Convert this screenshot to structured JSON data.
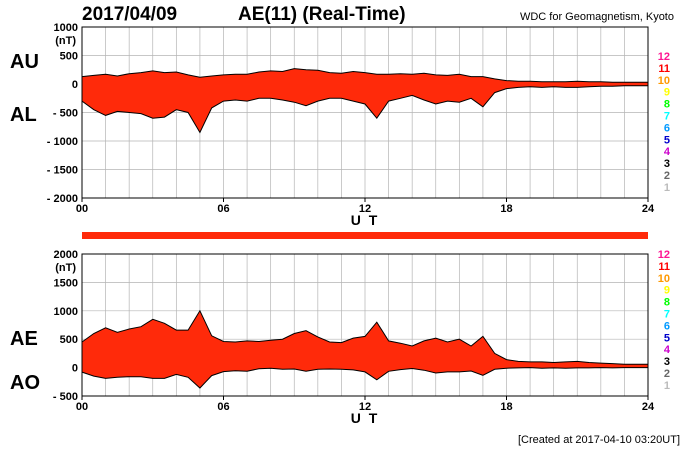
{
  "header": {
    "date": "2017/04/09",
    "title": "AE(11) (Real-Time)",
    "source": "WDC for Geomagnetism, Kyoto"
  },
  "footer": {
    "created": "[Created at 2017-04-10 03:20UT]"
  },
  "colors": {
    "fill": "#ff2a0a",
    "line": "#000000",
    "grid": "#b4b4b4"
  },
  "station_labels": {
    "items": [
      {
        "label": "12",
        "color": "#ff1493"
      },
      {
        "label": "11",
        "color": "#ff0000"
      },
      {
        "label": "10",
        "color": "#ff9900"
      },
      {
        "label": "9",
        "color": "#ffff00"
      },
      {
        "label": "8",
        "color": "#00ff00"
      },
      {
        "label": "7",
        "color": "#00ffff"
      },
      {
        "label": "6",
        "color": "#0099ff"
      },
      {
        "label": "5",
        "color": "#0000cc"
      },
      {
        "label": "4",
        "color": "#cc00cc"
      },
      {
        "label": "3",
        "color": "#000000"
      },
      {
        "label": "2",
        "color": "#666666"
      },
      {
        "label": "1",
        "color": "#bbbbbb"
      }
    ]
  },
  "chart_data": [
    {
      "type": "area",
      "panel": "AU / AL",
      "labels": {
        "upper": "AU",
        "lower": "AL"
      },
      "ylabel": "(nT)",
      "xlabel": "U T",
      "xlim": [
        0,
        24
      ],
      "ylim": [
        -2000,
        1000
      ],
      "xticks": [
        {
          "v": 0,
          "label": "00"
        },
        {
          "v": 6,
          "label": "06"
        },
        {
          "v": 12,
          "label": "12"
        },
        {
          "v": 18,
          "label": "18"
        },
        {
          "v": 24,
          "label": "24"
        }
      ],
      "yticks": [
        {
          "v": 1000,
          "label": "1000"
        },
        {
          "v": 500,
          "label": "500"
        },
        {
          "v": 0,
          "label": "0"
        },
        {
          "v": -500,
          "label": "- 500"
        },
        {
          "v": -1000,
          "label": "- 1000"
        },
        {
          "v": -1500,
          "label": "- 1500"
        },
        {
          "v": -2000,
          "label": "- 2000"
        }
      ],
      "grid": true,
      "series": [
        {
          "name": "AU",
          "x": [
            0,
            0.5,
            1,
            1.5,
            2,
            2.5,
            3,
            3.5,
            4,
            4.5,
            5,
            5.5,
            6,
            6.5,
            7,
            7.5,
            8,
            8.5,
            9,
            9.5,
            10,
            10.5,
            11,
            11.5,
            12,
            12.5,
            13,
            13.5,
            14,
            14.5,
            15,
            15.5,
            16,
            16.5,
            17,
            17.5,
            18,
            18.5,
            19,
            19.5,
            20,
            20.5,
            21,
            21.5,
            22,
            22.5,
            23,
            23.5,
            24
          ],
          "values": [
            130,
            150,
            170,
            140,
            180,
            200,
            230,
            200,
            210,
            160,
            120,
            140,
            160,
            170,
            170,
            210,
            230,
            220,
            270,
            250,
            240,
            200,
            190,
            220,
            200,
            170,
            170,
            180,
            170,
            190,
            160,
            150,
            170,
            130,
            130,
            90,
            60,
            50,
            50,
            40,
            40,
            40,
            50,
            40,
            40,
            30,
            30,
            30,
            30
          ]
        },
        {
          "name": "AL",
          "x": [
            0,
            0.5,
            1,
            1.5,
            2,
            2.5,
            3,
            3.5,
            4,
            4.5,
            5,
            5.5,
            6,
            6.5,
            7,
            7.5,
            8,
            8.5,
            9,
            9.5,
            10,
            10.5,
            11,
            11.5,
            12,
            12.5,
            13,
            13.5,
            14,
            14.5,
            15,
            15.5,
            16,
            16.5,
            17,
            17.5,
            18,
            18.5,
            19,
            19.5,
            20,
            20.5,
            21,
            21.5,
            22,
            22.5,
            23,
            23.5,
            24
          ],
          "values": [
            -300,
            -450,
            -550,
            -480,
            -500,
            -520,
            -600,
            -580,
            -450,
            -500,
            -850,
            -420,
            -300,
            -280,
            -300,
            -250,
            -250,
            -280,
            -320,
            -380,
            -300,
            -250,
            -250,
            -300,
            -350,
            -600,
            -300,
            -250,
            -200,
            -280,
            -350,
            -300,
            -320,
            -250,
            -400,
            -150,
            -80,
            -60,
            -50,
            -60,
            -50,
            -60,
            -60,
            -50,
            -40,
            -40,
            -30,
            -30,
            -30
          ]
        }
      ]
    },
    {
      "type": "area",
      "panel": "AE / AO",
      "labels": {
        "upper": "AE",
        "lower": "AO"
      },
      "ylabel": "(nT)",
      "xlabel": "U T",
      "xlim": [
        0,
        24
      ],
      "ylim": [
        -500,
        2000
      ],
      "xticks": [
        {
          "v": 0,
          "label": "00"
        },
        {
          "v": 6,
          "label": "06"
        },
        {
          "v": 12,
          "label": "12"
        },
        {
          "v": 18,
          "label": "18"
        },
        {
          "v": 24,
          "label": "24"
        }
      ],
      "yticks": [
        {
          "v": 2000,
          "label": "2000"
        },
        {
          "v": 1500,
          "label": "1500"
        },
        {
          "v": 1000,
          "label": "1000"
        },
        {
          "v": 500,
          "label": "500"
        },
        {
          "v": 0,
          "label": "0"
        },
        {
          "v": -500,
          "label": "- 500"
        }
      ],
      "grid": true,
      "series": [
        {
          "name": "AE",
          "x": [
            0,
            0.5,
            1,
            1.5,
            2,
            2.5,
            3,
            3.5,
            4,
            4.5,
            5,
            5.5,
            6,
            6.5,
            7,
            7.5,
            8,
            8.5,
            9,
            9.5,
            10,
            10.5,
            11,
            11.5,
            12,
            12.5,
            13,
            13.5,
            14,
            14.5,
            15,
            15.5,
            16,
            16.5,
            17,
            17.5,
            18,
            18.5,
            19,
            19.5,
            20,
            20.5,
            21,
            21.5,
            22,
            22.5,
            23,
            23.5,
            24
          ],
          "values": [
            450,
            600,
            700,
            620,
            680,
            720,
            850,
            780,
            660,
            660,
            1000,
            560,
            460,
            450,
            470,
            460,
            480,
            500,
            600,
            650,
            540,
            450,
            440,
            520,
            550,
            800,
            470,
            430,
            380,
            470,
            520,
            450,
            500,
            380,
            550,
            250,
            140,
            110,
            100,
            100,
            90,
            100,
            110,
            90,
            80,
            70,
            60,
            60,
            60
          ]
        },
        {
          "name": "AO",
          "x": [
            0,
            0.5,
            1,
            1.5,
            2,
            2.5,
            3,
            3.5,
            4,
            4.5,
            5,
            5.5,
            6,
            6.5,
            7,
            7.5,
            8,
            8.5,
            9,
            9.5,
            10,
            10.5,
            11,
            11.5,
            12,
            12.5,
            13,
            13.5,
            14,
            14.5,
            15,
            15.5,
            16,
            16.5,
            17,
            17.5,
            18,
            18.5,
            19,
            19.5,
            20,
            20.5,
            21,
            21.5,
            22,
            22.5,
            23,
            23.5,
            24
          ],
          "values": [
            -80,
            -150,
            -190,
            -170,
            -160,
            -160,
            -190,
            -190,
            -120,
            -170,
            -360,
            -140,
            -70,
            -55,
            -65,
            -20,
            -10,
            -30,
            -25,
            -65,
            -30,
            -25,
            -30,
            -40,
            -75,
            -215,
            -65,
            -35,
            -15,
            -45,
            -95,
            -75,
            -75,
            -60,
            -135,
            -30,
            -10,
            -5,
            0,
            -10,
            -5,
            -10,
            -5,
            -5,
            0,
            -5,
            0,
            0,
            0
          ]
        }
      ]
    }
  ]
}
